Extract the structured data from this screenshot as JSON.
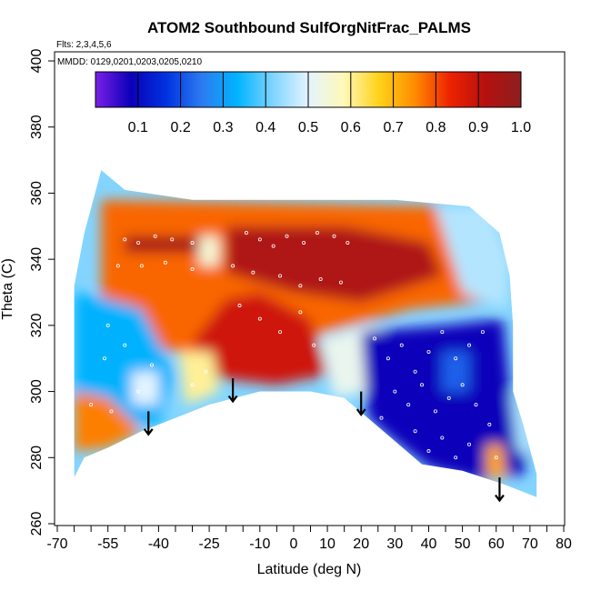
{
  "chart_data": {
    "type": "heatmap",
    "title": "ATOM2 Southbound SulfOrgNitFrac_PALMS",
    "subtitle_flights": "Flts: 2,3,4,5,6",
    "subtitle_dates": "MMDD: 0129,0201,0203,0205,0210",
    "xlabel": "Latitude (deg N)",
    "ylabel": "Theta (C)",
    "xlim": [
      -70,
      80
    ],
    "ylim": [
      260,
      400
    ],
    "xticks": [
      -70,
      -55,
      -40,
      -25,
      -10,
      0,
      10,
      20,
      30,
      40,
      50,
      60,
      70,
      80
    ],
    "xtick_labels": [
      "-70",
      "-55",
      "-40",
      "-25",
      "-10",
      "0",
      "10",
      "20",
      "30",
      "40",
      "50",
      "60",
      "70",
      "80"
    ],
    "xminor_step": 5,
    "yticks": [
      260,
      280,
      300,
      320,
      340,
      360,
      380,
      400
    ],
    "ytick_labels": [
      "260",
      "280",
      "300",
      "320",
      "340",
      "360",
      "380",
      "400"
    ],
    "colorbar": {
      "range": [
        0,
        1
      ],
      "ticks": [
        0.1,
        0.2,
        0.3,
        0.4,
        0.5,
        0.6,
        0.7,
        0.8,
        0.9,
        1.0
      ],
      "tick_labels": [
        "0.1",
        "0.2",
        "0.3",
        "0.4",
        "0.5",
        "0.6",
        "0.7",
        "0.8",
        "0.9",
        "1.0"
      ],
      "colors": [
        "#7a1fe6",
        "#0b00b8",
        "#0033e0",
        "#2c7bf0",
        "#00b4ff",
        "#7fd4ff",
        "#e4f4ff",
        "#fff8b8",
        "#ffd21a",
        "#ff8c00",
        "#ee2200",
        "#b51010",
        "#8e1f1f"
      ]
    },
    "domain_outline": [
      {
        "x": -65,
        "y": 274
      },
      {
        "x": -65,
        "y": 332
      },
      {
        "x": -62,
        "y": 348
      },
      {
        "x": -57,
        "y": 367
      },
      {
        "x": -50,
        "y": 361
      },
      {
        "x": -30,
        "y": 358
      },
      {
        "x": -10,
        "y": 358
      },
      {
        "x": 10,
        "y": 358
      },
      {
        "x": 30,
        "y": 358
      },
      {
        "x": 52,
        "y": 356
      },
      {
        "x": 61,
        "y": 348
      },
      {
        "x": 64,
        "y": 335
      },
      {
        "x": 65,
        "y": 320
      },
      {
        "x": 65,
        "y": 300
      },
      {
        "x": 68,
        "y": 290
      },
      {
        "x": 72,
        "y": 275
      },
      {
        "x": 72,
        "y": 268
      },
      {
        "x": 62,
        "y": 272
      },
      {
        "x": 50,
        "y": 276
      },
      {
        "x": 38,
        "y": 278
      },
      {
        "x": 30,
        "y": 285
      },
      {
        "x": 22,
        "y": 292
      },
      {
        "x": 15,
        "y": 298
      },
      {
        "x": 5,
        "y": 300
      },
      {
        "x": -10,
        "y": 300
      },
      {
        "x": -25,
        "y": 296
      },
      {
        "x": -35,
        "y": 292
      },
      {
        "x": -45,
        "y": 288
      },
      {
        "x": -55,
        "y": 283
      },
      {
        "x": -62,
        "y": 280
      }
    ],
    "regions": [
      {
        "value": 0.78,
        "points": [
          {
            "x": -57,
            "y": 358
          },
          {
            "x": 48,
            "y": 356
          },
          {
            "x": 60,
            "y": 345
          },
          {
            "x": 62,
            "y": 328
          },
          {
            "x": 35,
            "y": 325
          },
          {
            "x": 10,
            "y": 318
          },
          {
            "x": -10,
            "y": 310
          },
          {
            "x": -35,
            "y": 312
          },
          {
            "x": -57,
            "y": 318
          }
        ]
      },
      {
        "value": 0.46,
        "points": [
          {
            "x": 42,
            "y": 356
          },
          {
            "x": 58,
            "y": 356
          },
          {
            "x": 64,
            "y": 340
          },
          {
            "x": 63,
            "y": 325
          },
          {
            "x": 50,
            "y": 330
          }
        ]
      },
      {
        "value": 0.93,
        "points": [
          {
            "x": -20,
            "y": 350
          },
          {
            "x": 15,
            "y": 350
          },
          {
            "x": 40,
            "y": 345
          },
          {
            "x": 44,
            "y": 335
          },
          {
            "x": 20,
            "y": 327
          },
          {
            "x": 0,
            "y": 330
          },
          {
            "x": -20,
            "y": 336
          }
        ]
      },
      {
        "value": 0.95,
        "points": [
          {
            "x": -50,
            "y": 347
          },
          {
            "x": -28,
            "y": 347
          },
          {
            "x": -28,
            "y": 342
          },
          {
            "x": -50,
            "y": 342
          }
        ]
      },
      {
        "value": 0.55,
        "points": [
          {
            "x": -28,
            "y": 347
          },
          {
            "x": -22,
            "y": 347
          },
          {
            "x": -22,
            "y": 338
          },
          {
            "x": -28,
            "y": 338
          }
        ]
      },
      {
        "value": 0.88,
        "points": [
          {
            "x": -10,
            "y": 330
          },
          {
            "x": 5,
            "y": 322
          },
          {
            "x": 10,
            "y": 305
          },
          {
            "x": -5,
            "y": 302
          },
          {
            "x": -22,
            "y": 304
          },
          {
            "x": -30,
            "y": 315
          },
          {
            "x": -20,
            "y": 328
          }
        ]
      },
      {
        "value": 0.33,
        "points": [
          {
            "x": -65,
            "y": 330
          },
          {
            "x": -55,
            "y": 328
          },
          {
            "x": -45,
            "y": 325
          },
          {
            "x": -35,
            "y": 305
          },
          {
            "x": -40,
            "y": 290
          },
          {
            "x": -50,
            "y": 290
          },
          {
            "x": -65,
            "y": 300
          }
        ]
      },
      {
        "value": 0.76,
        "points": [
          {
            "x": -65,
            "y": 300
          },
          {
            "x": -55,
            "y": 298
          },
          {
            "x": -45,
            "y": 288
          },
          {
            "x": -55,
            "y": 283
          },
          {
            "x": -65,
            "y": 282
          }
        ]
      },
      {
        "value": 0.5,
        "points": [
          {
            "x": -48,
            "y": 306
          },
          {
            "x": -40,
            "y": 306
          },
          {
            "x": -40,
            "y": 296
          },
          {
            "x": -48,
            "y": 296
          }
        ]
      },
      {
        "value": 0.6,
        "points": [
          {
            "x": -34,
            "y": 312
          },
          {
            "x": -24,
            "y": 312
          },
          {
            "x": -22,
            "y": 300
          },
          {
            "x": -32,
            "y": 296
          }
        ]
      },
      {
        "value": 0.52,
        "points": [
          {
            "x": 8,
            "y": 316
          },
          {
            "x": 22,
            "y": 320
          },
          {
            "x": 30,
            "y": 318
          },
          {
            "x": 22,
            "y": 300
          },
          {
            "x": 12,
            "y": 298
          }
        ]
      },
      {
        "value": 0.08,
        "points": [
          {
            "x": 20,
            "y": 318
          },
          {
            "x": 45,
            "y": 320
          },
          {
            "x": 62,
            "y": 322
          },
          {
            "x": 64,
            "y": 300
          },
          {
            "x": 70,
            "y": 285
          },
          {
            "x": 68,
            "y": 275
          },
          {
            "x": 55,
            "y": 273
          },
          {
            "x": 40,
            "y": 277
          },
          {
            "x": 30,
            "y": 285
          },
          {
            "x": 22,
            "y": 292
          }
        ]
      },
      {
        "value": 0.22,
        "points": [
          {
            "x": 44,
            "y": 312
          },
          {
            "x": 52,
            "y": 312
          },
          {
            "x": 52,
            "y": 300
          },
          {
            "x": 44,
            "y": 300
          }
        ]
      },
      {
        "value": 0.72,
        "points": [
          {
            "x": 57,
            "y": 284
          },
          {
            "x": 62,
            "y": 284
          },
          {
            "x": 63,
            "y": 274
          },
          {
            "x": 57,
            "y": 274
          }
        ]
      },
      {
        "value": 0.45,
        "points": [
          {
            "x": 64,
            "y": 300
          },
          {
            "x": 70,
            "y": 295
          },
          {
            "x": 72,
            "y": 280
          },
          {
            "x": 66,
            "y": 282
          }
        ]
      }
    ],
    "obs_points": [
      {
        "x": -50,
        "y": 346
      },
      {
        "x": -46,
        "y": 345
      },
      {
        "x": -41,
        "y": 347
      },
      {
        "x": -36,
        "y": 346
      },
      {
        "x": -30,
        "y": 345
      },
      {
        "x": -52,
        "y": 338
      },
      {
        "x": -45,
        "y": 338
      },
      {
        "x": -38,
        "y": 339
      },
      {
        "x": -30,
        "y": 337
      },
      {
        "x": -14,
        "y": 348
      },
      {
        "x": -10,
        "y": 346
      },
      {
        "x": -6,
        "y": 344
      },
      {
        "x": -2,
        "y": 347
      },
      {
        "x": 3,
        "y": 345
      },
      {
        "x": 7,
        "y": 348
      },
      {
        "x": 12,
        "y": 347
      },
      {
        "x": 16,
        "y": 345
      },
      {
        "x": -18,
        "y": 338
      },
      {
        "x": -12,
        "y": 336
      },
      {
        "x": -4,
        "y": 335
      },
      {
        "x": 2,
        "y": 332
      },
      {
        "x": 8,
        "y": 334
      },
      {
        "x": 14,
        "y": 333
      },
      {
        "x": -16,
        "y": 326
      },
      {
        "x": -10,
        "y": 322
      },
      {
        "x": -4,
        "y": 318
      },
      {
        "x": 2,
        "y": 324
      },
      {
        "x": 6,
        "y": 314
      },
      {
        "x": -55,
        "y": 320
      },
      {
        "x": -50,
        "y": 314
      },
      {
        "x": -56,
        "y": 310
      },
      {
        "x": -46,
        "y": 300
      },
      {
        "x": -42,
        "y": 308
      },
      {
        "x": -60,
        "y": 296
      },
      {
        "x": -54,
        "y": 294
      },
      {
        "x": -30,
        "y": 302
      },
      {
        "x": -26,
        "y": 306
      },
      {
        "x": 24,
        "y": 316
      },
      {
        "x": 28,
        "y": 310
      },
      {
        "x": 32,
        "y": 314
      },
      {
        "x": 36,
        "y": 306
      },
      {
        "x": 40,
        "y": 312
      },
      {
        "x": 44,
        "y": 318
      },
      {
        "x": 48,
        "y": 310
      },
      {
        "x": 52,
        "y": 314
      },
      {
        "x": 56,
        "y": 318
      },
      {
        "x": 30,
        "y": 300
      },
      {
        "x": 34,
        "y": 296
      },
      {
        "x": 38,
        "y": 302
      },
      {
        "x": 42,
        "y": 294
      },
      {
        "x": 46,
        "y": 298
      },
      {
        "x": 50,
        "y": 302
      },
      {
        "x": 54,
        "y": 296
      },
      {
        "x": 26,
        "y": 292
      },
      {
        "x": 36,
        "y": 288
      },
      {
        "x": 44,
        "y": 286
      },
      {
        "x": 52,
        "y": 284
      },
      {
        "x": 58,
        "y": 290
      },
      {
        "x": 60,
        "y": 280
      },
      {
        "x": 48,
        "y": 280
      },
      {
        "x": 40,
        "y": 282
      }
    ],
    "arrows": [
      {
        "x": -43,
        "y_start": 294,
        "y_end": 287
      },
      {
        "x": -18,
        "y_start": 304,
        "y_end": 297
      },
      {
        "x": 20,
        "y_start": 300,
        "y_end": 293
      },
      {
        "x": 61,
        "y_start": 274,
        "y_end": 267
      }
    ]
  }
}
